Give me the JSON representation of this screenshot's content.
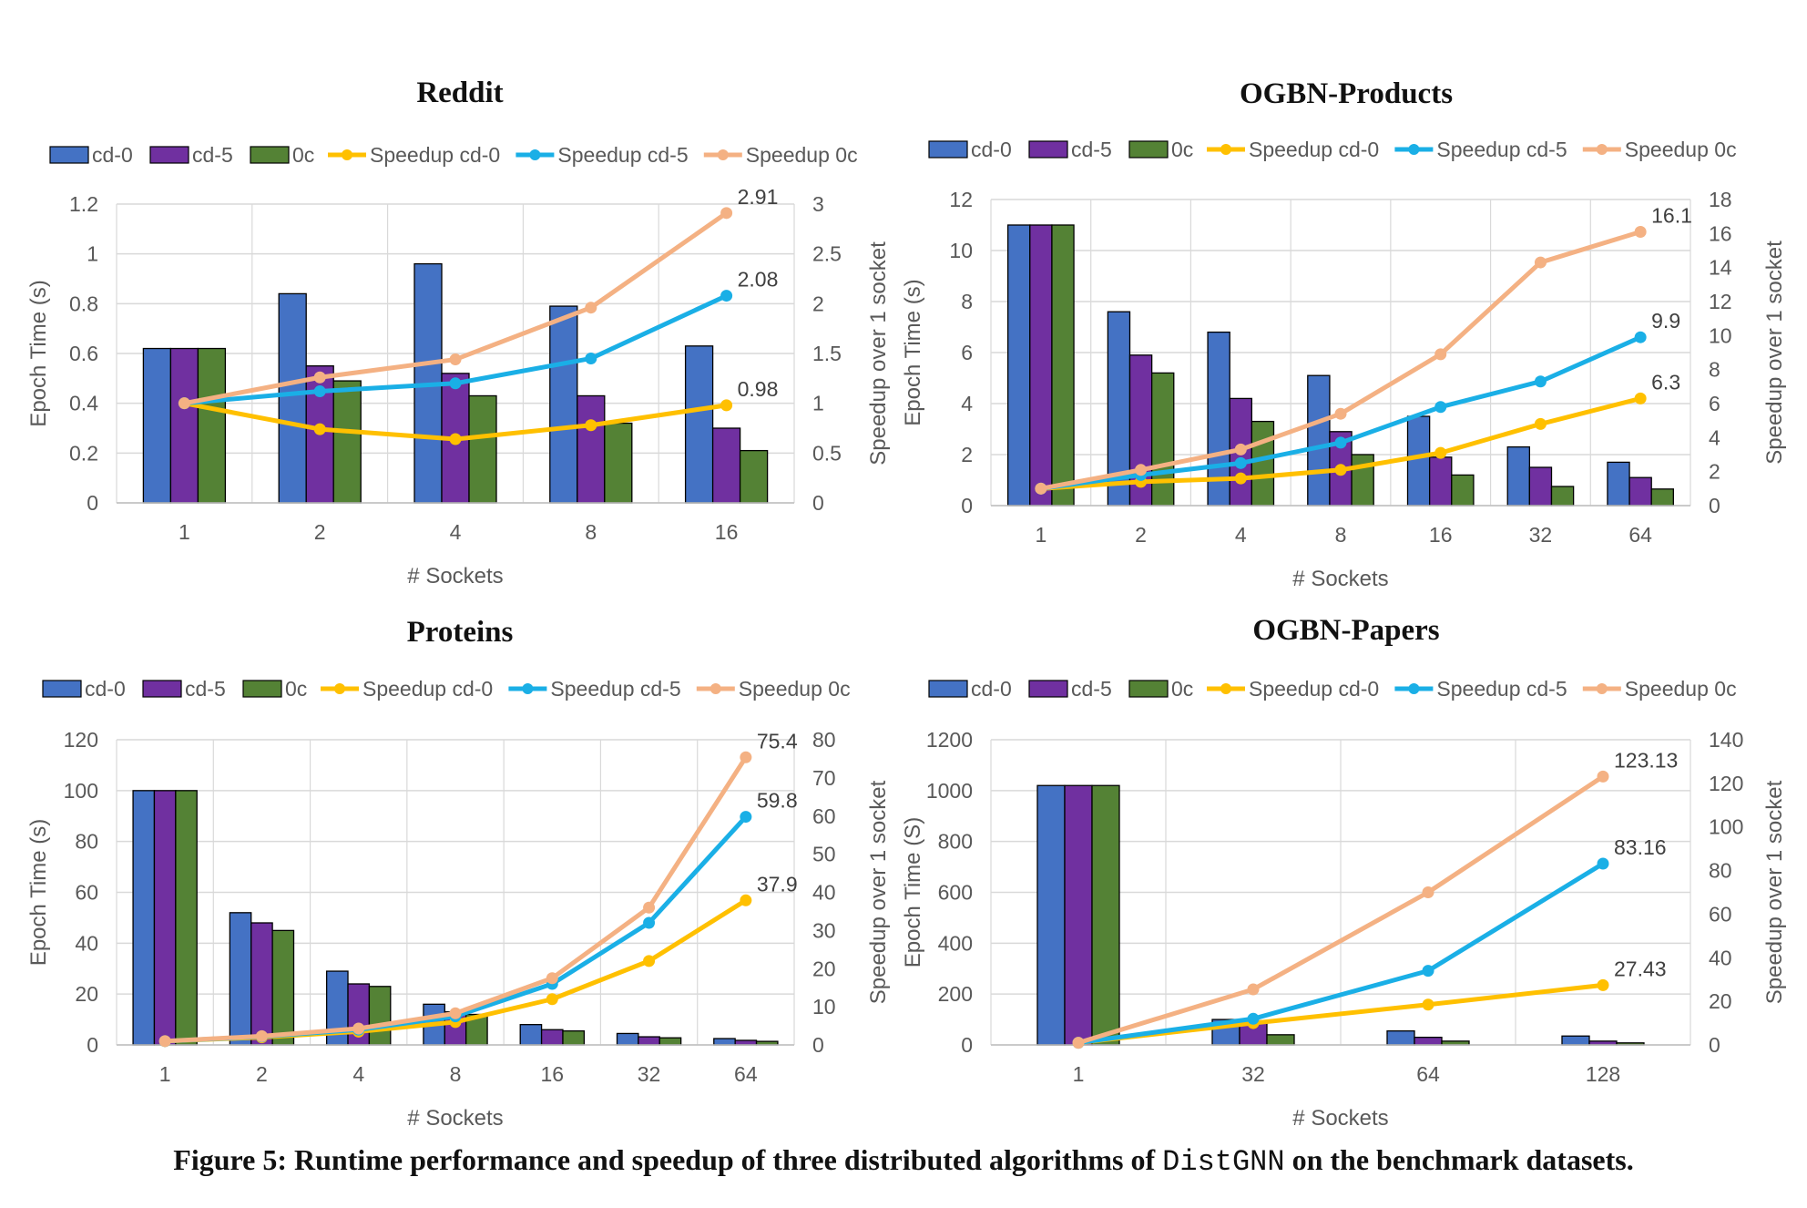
{
  "figure": {
    "caption_prefix": "Figure 5: Runtime performance and speedup of three distributed algorithms of ",
    "caption_code": "DistGNN",
    "caption_suffix": " on the benchmark datasets."
  },
  "colors": {
    "cd0_bar": "#4472C4",
    "cd5_bar": "#7030A0",
    "0c_bar": "#548235",
    "speedup_cd0": "#FFC000",
    "speedup_cd5": "#1AAFE6",
    "speedup_0c": "#F4B183",
    "grid": "#d9d9d9",
    "axis_text": "#595959"
  },
  "chart_data": [
    {
      "type": "bar+line",
      "title": "Reddit",
      "xlabel": "# Sockets",
      "ylabel": "Epoch Time (s)",
      "y2label": "Speedup over 1 socket",
      "categories": [
        "1",
        "2",
        "4",
        "8",
        "16"
      ],
      "ylim": [
        0,
        1.2
      ],
      "yticks": [
        "0",
        "0.2",
        "0.4",
        "0.6",
        "0.8",
        "1",
        "1.2"
      ],
      "y2lim": [
        0,
        3
      ],
      "y2ticks": [
        "0",
        "0.5",
        "1",
        "1.5",
        "2",
        "2.5",
        "3"
      ],
      "legend_position": "top",
      "grid": true,
      "bar_series": [
        {
          "name": "cd-0",
          "values": [
            0.62,
            0.84,
            0.96,
            0.79,
            0.63
          ]
        },
        {
          "name": "cd-5",
          "values": [
            0.62,
            0.55,
            0.52,
            0.43,
            0.3
          ]
        },
        {
          "name": "0c",
          "values": [
            0.62,
            0.49,
            0.43,
            0.32,
            0.21
          ]
        }
      ],
      "line_series": [
        {
          "name": "Speedup cd-0",
          "values": [
            1.0,
            0.74,
            0.64,
            0.78,
            0.98
          ],
          "end_label": "0.98"
        },
        {
          "name": "Speedup cd-5",
          "values": [
            1.0,
            1.12,
            1.2,
            1.45,
            2.08
          ],
          "end_label": "2.08"
        },
        {
          "name": "Speedup 0c",
          "values": [
            1.0,
            1.26,
            1.44,
            1.96,
            2.91
          ],
          "end_label": "2.91"
        }
      ]
    },
    {
      "type": "bar+line",
      "title": "OGBN-Products",
      "xlabel": "# Sockets",
      "ylabel": "Epoch Time (s)",
      "y2label": "Speedup over 1 socket",
      "categories": [
        "1",
        "2",
        "4",
        "8",
        "16",
        "32",
        "64"
      ],
      "ylim": [
        0,
        12
      ],
      "yticks": [
        "0",
        "2",
        "4",
        "6",
        "8",
        "10",
        "12"
      ],
      "y2lim": [
        0,
        18
      ],
      "y2ticks": [
        "0",
        "2",
        "4",
        "6",
        "8",
        "10",
        "12",
        "14",
        "16",
        "18"
      ],
      "legend_position": "top",
      "grid": true,
      "bar_series": [
        {
          "name": "cd-0",
          "values": [
            11.0,
            7.6,
            6.8,
            5.1,
            3.5,
            2.3,
            1.7
          ]
        },
        {
          "name": "cd-5",
          "values": [
            11.0,
            5.9,
            4.2,
            2.9,
            1.9,
            1.5,
            1.1
          ]
        },
        {
          "name": "0c",
          "values": [
            11.0,
            5.2,
            3.3,
            2.0,
            1.2,
            0.75,
            0.65
          ]
        }
      ],
      "line_series": [
        {
          "name": "Speedup cd-0",
          "values": [
            1.0,
            1.4,
            1.6,
            2.1,
            3.1,
            4.8,
            6.3
          ],
          "end_label": "6.3"
        },
        {
          "name": "Speedup cd-5",
          "values": [
            1.0,
            1.8,
            2.5,
            3.7,
            5.8,
            7.3,
            9.9
          ],
          "end_label": "9.9"
        },
        {
          "name": "Speedup 0c",
          "values": [
            1.0,
            2.1,
            3.3,
            5.4,
            8.9,
            14.3,
            16.1
          ],
          "end_label": "16.1"
        }
      ]
    },
    {
      "type": "bar+line",
      "title": "Proteins",
      "xlabel": "# Sockets",
      "ylabel": "Epoch Time (s)",
      "y2label": "Speedup over 1 socket",
      "categories": [
        "1",
        "2",
        "4",
        "8",
        "16",
        "32",
        "64"
      ],
      "ylim": [
        0,
        120
      ],
      "yticks": [
        "0",
        "20",
        "40",
        "60",
        "80",
        "100",
        "120"
      ],
      "y2lim": [
        0,
        80
      ],
      "y2ticks": [
        "0",
        "10",
        "20",
        "30",
        "40",
        "50",
        "60",
        "70",
        "80"
      ],
      "legend_position": "top",
      "grid": true,
      "bar_series": [
        {
          "name": "cd-0",
          "values": [
            100,
            52,
            29,
            16,
            8,
            4.5,
            2.5
          ]
        },
        {
          "name": "cd-5",
          "values": [
            100,
            48,
            24,
            13,
            6,
            3.2,
            1.8
          ]
        },
        {
          "name": "0c",
          "values": [
            100,
            45,
            23,
            12,
            5.5,
            2.8,
            1.4
          ]
        }
      ],
      "line_series": [
        {
          "name": "Speedup cd-0",
          "values": [
            1.0,
            2.0,
            3.5,
            6.0,
            12.0,
            22.0,
            37.9
          ],
          "end_label": "37.9"
        },
        {
          "name": "Speedup cd-5",
          "values": [
            1.0,
            2.2,
            4.0,
            7.5,
            16.0,
            32.0,
            59.8
          ],
          "end_label": "59.8"
        },
        {
          "name": "Speedup 0c",
          "values": [
            1.0,
            2.3,
            4.3,
            8.3,
            17.5,
            36.0,
            75.4
          ],
          "end_label": "75.4"
        }
      ]
    },
    {
      "type": "bar+line",
      "title": "OGBN-Papers",
      "xlabel": "# Sockets",
      "ylabel": "Epoch Time (S)",
      "y2label": "Speedup over 1 socket",
      "categories": [
        "1",
        "32",
        "64",
        "128"
      ],
      "ylim": [
        0,
        1200
      ],
      "yticks": [
        "0",
        "200",
        "400",
        "600",
        "800",
        "1000",
        "1200"
      ],
      "y2lim": [
        0,
        140
      ],
      "y2ticks": [
        "0",
        "20",
        "40",
        "60",
        "80",
        "100",
        "120",
        "140"
      ],
      "legend_position": "top",
      "grid": true,
      "bar_series": [
        {
          "name": "cd-0",
          "values": [
            1020,
            100,
            55,
            35
          ]
        },
        {
          "name": "cd-5",
          "values": [
            1020,
            95,
            30,
            15
          ]
        },
        {
          "name": "0c",
          "values": [
            1020,
            40,
            15,
            8
          ]
        }
      ],
      "line_series": [
        {
          "name": "Speedup cd-0",
          "values": [
            1.0,
            10.0,
            18.5,
            27.43
          ],
          "end_label": "27.43"
        },
        {
          "name": "Speedup cd-5",
          "values": [
            1.0,
            12.0,
            34.0,
            83.16
          ],
          "end_label": "83.16"
        },
        {
          "name": "Speedup 0c",
          "values": [
            1.0,
            25.5,
            70.0,
            123.13
          ],
          "end_label": "123.13"
        }
      ]
    }
  ]
}
